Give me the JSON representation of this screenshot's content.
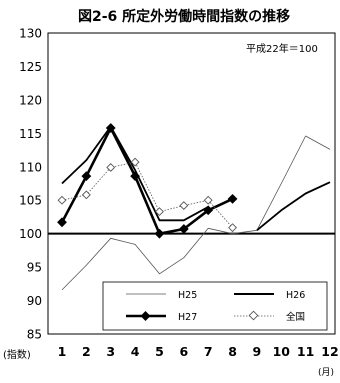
{
  "chart_data": {
    "type": "line",
    "title": "図2-6 所定外労働時間指数の推移",
    "annotation": "平成22年＝100",
    "ylabel": "(指数)",
    "xunit": "(月)",
    "categories": [
      "1",
      "2",
      "3",
      "4",
      "5",
      "6",
      "7",
      "8",
      "9",
      "10",
      "11",
      "12"
    ],
    "ylim": [
      85,
      130
    ],
    "yticks": [
      "85",
      "90",
      "95",
      "100",
      "105",
      "110",
      "115",
      "120",
      "125",
      "130"
    ],
    "reference_line": 100,
    "grid": false,
    "legend_position": "bottom-inside",
    "series": [
      {
        "name": "H25",
        "values": [
          91.6,
          95.3,
          99.3,
          98.4,
          94.0,
          96.4,
          100.8,
          100.0,
          100.5,
          107.5,
          114.6,
          112.6
        ],
        "color": "#555555",
        "style": "thin"
      },
      {
        "name": "H26",
        "values": [
          107.5,
          111.0,
          116.0,
          109.5,
          102.0,
          102.0,
          104.0,
          null,
          100.5,
          103.5,
          106.0,
          107.7
        ],
        "color": "#000000",
        "style": "medium"
      },
      {
        "name": "H27",
        "values": [
          101.7,
          108.6,
          115.8,
          108.6,
          100.0,
          100.7,
          103.5,
          105.2,
          null,
          null,
          null,
          null
        ],
        "color": "#000000",
        "style": "thick-diamond"
      },
      {
        "name": "全国",
        "values": [
          105.0,
          105.8,
          109.9,
          110.7,
          103.3,
          104.2,
          105.0,
          100.9,
          null,
          null,
          null,
          null
        ],
        "color": "#555555",
        "style": "dotted-open-diamond"
      }
    ]
  }
}
